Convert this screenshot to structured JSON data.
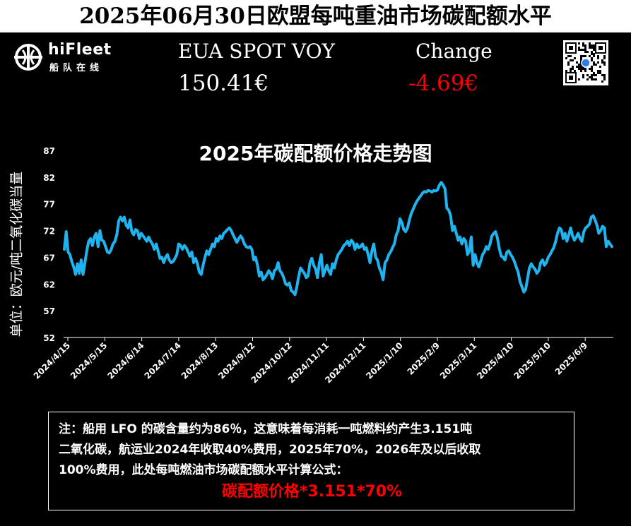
{
  "header": {
    "title": "2025年06月30日欧盟每吨重油市场碳配额水平",
    "logo_name": "hiFleet",
    "logo_sub": "船队在线",
    "price_label": "EUA SPOT VOY",
    "price_value": "150.41€",
    "change_label": "Change",
    "change_value": "-4.69€"
  },
  "colors": {
    "background": "#000000",
    "line": "#1fb4f0",
    "negative": "#ff0000"
  },
  "chart_data": {
    "type": "line",
    "title": "2025年碳配额价格走势图",
    "ylabel": "单位：欧元/吨二氧化碳当量",
    "ylim": [
      52,
      87
    ],
    "yticks": [
      87,
      82,
      77,
      72,
      67,
      62,
      57,
      52
    ],
    "xticks": [
      "2024/4/15",
      "2024/5/15",
      "2024/6/14",
      "2024/7/14",
      "2024/8/13",
      "2024/9/12",
      "2024/10/12",
      "2024/11/11",
      "2024/12/11",
      "2025/1/10",
      "2025/2/9",
      "2025/3/11",
      "2025/4/10",
      "2025/5/10",
      "2025/6/9"
    ],
    "series": [
      {
        "values": [
          68.5,
          71.8,
          68.0,
          67.5,
          66.2,
          65.2,
          63.8,
          65.8,
          64.0,
          66.5,
          63.8,
          66.0,
          68.2,
          70.0,
          70.5,
          69.2,
          70.8,
          71.5,
          69.0,
          72.0,
          70.2,
          70.0,
          69.0,
          68.0,
          67.8,
          68.5,
          69.5,
          70.0,
          71.2,
          73.8,
          74.5,
          73.8,
          74.5,
          73.0,
          72.5,
          74.0,
          71.8,
          71.2,
          72.2,
          72.0,
          70.5,
          71.5,
          71.0,
          70.5,
          70.0,
          70.8,
          70.0,
          69.5,
          68.5,
          69.5,
          68.2,
          66.8,
          67.0,
          66.0,
          67.0,
          67.5,
          66.5,
          66.0,
          66.2,
          66.8,
          67.5,
          69.5,
          69.2,
          68.5,
          69.2,
          68.8,
          68.0,
          67.2,
          68.0,
          66.0,
          66.8,
          65.8,
          64.2,
          63.8,
          65.5,
          67.0,
          68.2,
          67.5,
          68.5,
          69.5,
          69.0,
          70.5,
          70.0,
          71.0,
          70.5,
          71.5,
          71.8,
          72.2,
          72.5,
          72.0,
          71.2,
          70.5,
          69.8,
          70.5,
          71.0,
          70.5,
          69.5,
          69.0,
          68.8,
          69.0,
          68.5,
          66.5,
          67.0,
          65.5,
          63.5,
          64.2,
          62.8,
          63.2,
          63.8,
          64.5,
          64.0,
          63.0,
          64.5,
          64.8,
          66.0,
          64.5,
          64.0,
          63.2,
          62.0,
          61.8,
          62.2,
          60.8,
          60.5,
          60.0,
          61.5,
          63.5,
          65.0,
          64.5,
          64.0,
          63.2,
          63.5,
          66.0,
          66.8,
          65.5,
          64.8,
          63.2,
          66.0,
          67.5,
          63.5,
          64.5,
          65.5,
          64.5,
          63.8,
          65.8,
          65.0,
          66.5,
          67.5,
          68.0,
          68.5,
          69.2,
          69.5,
          70.0,
          69.2,
          70.2,
          69.8,
          68.5,
          69.5,
          68.8,
          69.0,
          69.5,
          68.5,
          68.8,
          67.5,
          66.0,
          68.2,
          69.5,
          67.0,
          66.5,
          65.0,
          64.2,
          62.8,
          66.0,
          66.5,
          67.5,
          68.0,
          68.8,
          69.5,
          71.2,
          72.0,
          74.2,
          73.5,
          72.2,
          71.8,
          72.5,
          74.0,
          75.2,
          76.0,
          76.8,
          77.5,
          78.0,
          78.5,
          79.0,
          79.3,
          79.2,
          79.5,
          79.4,
          79.2,
          79.5,
          79.4,
          79.6,
          80.5,
          81.0,
          80.5,
          79.8,
          76.2,
          75.8,
          74.8,
          72.0,
          72.8,
          71.5,
          70.2,
          70.8,
          69.5,
          70.5,
          70.0,
          67.5,
          68.2,
          70.8,
          65.5,
          67.5,
          66.0,
          65.2,
          66.2,
          67.5,
          68.0,
          69.0,
          68.5,
          69.5,
          71.0,
          71.5,
          71.8,
          70.5,
          68.5,
          67.2,
          67.0,
          66.5,
          68.0,
          68.2,
          67.5,
          67.0,
          66.2,
          65.2,
          64.2,
          62.5,
          61.5,
          60.5,
          61.0,
          63.0,
          65.0,
          65.8,
          65.2,
          64.8,
          64.0,
          64.5,
          66.0,
          66.5,
          65.5,
          66.0,
          67.0,
          67.5,
          68.2,
          68.8,
          70.0,
          71.5,
          72.5,
          72.2,
          70.5,
          71.5,
          70.0,
          71.2,
          72.5,
          71.0,
          70.2,
          70.8,
          71.5,
          70.5,
          70.0,
          71.8,
          72.5,
          72.8,
          73.2,
          74.5,
          74.8,
          74.0,
          73.0,
          71.5,
          72.0,
          72.8,
          72.5,
          69.0,
          70.0,
          69.5,
          69.0
        ]
      }
    ]
  },
  "note": {
    "line1": "注：船用 LFO 的碳含量约为86％，这意味着每消耗一吨燃料约产生3.151吨",
    "line2": "二氧化碳，航运业2024年收取40%费用，2025年70%，2026年及以后收取",
    "line3": "100%费用，此处每吨燃油市场碳配额水平计算公式：",
    "formula": "碳配额价格*3.151*70%"
  }
}
